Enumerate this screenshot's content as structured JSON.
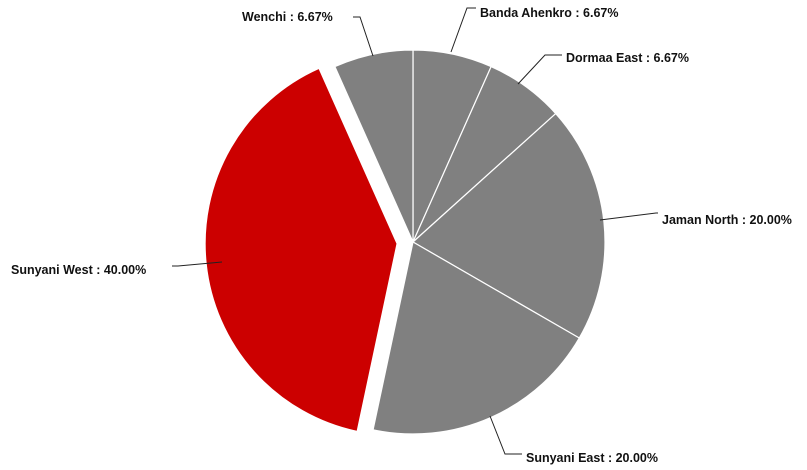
{
  "chart_data": {
    "type": "pie",
    "slices": [
      {
        "label": "Banda Ahenkro",
        "value": 6.67,
        "text": "Banda Ahenkro : 6.67%",
        "color": "#808080",
        "exploded": false
      },
      {
        "label": "Dormaa East",
        "value": 6.67,
        "text": "Dormaa East : 6.67%",
        "color": "#808080",
        "exploded": false
      },
      {
        "label": "Jaman North",
        "value": 20.0,
        "text": "Jaman North : 20.00%",
        "color": "#808080",
        "exploded": false
      },
      {
        "label": "Sunyani East",
        "value": 20.0,
        "text": "Sunyani East : 20.00%",
        "color": "#808080",
        "exploded": false
      },
      {
        "label": "Sunyani West",
        "value": 40.0,
        "text": "Sunyani West : 40.00%",
        "color": "#cc0000",
        "exploded": true
      },
      {
        "label": "Wenchi",
        "value": 6.67,
        "text": "Wenchi : 6.67%",
        "color": "#808080",
        "exploded": false
      }
    ],
    "start_angle": "12 o'clock",
    "direction": "clockwise",
    "legend": "none"
  }
}
